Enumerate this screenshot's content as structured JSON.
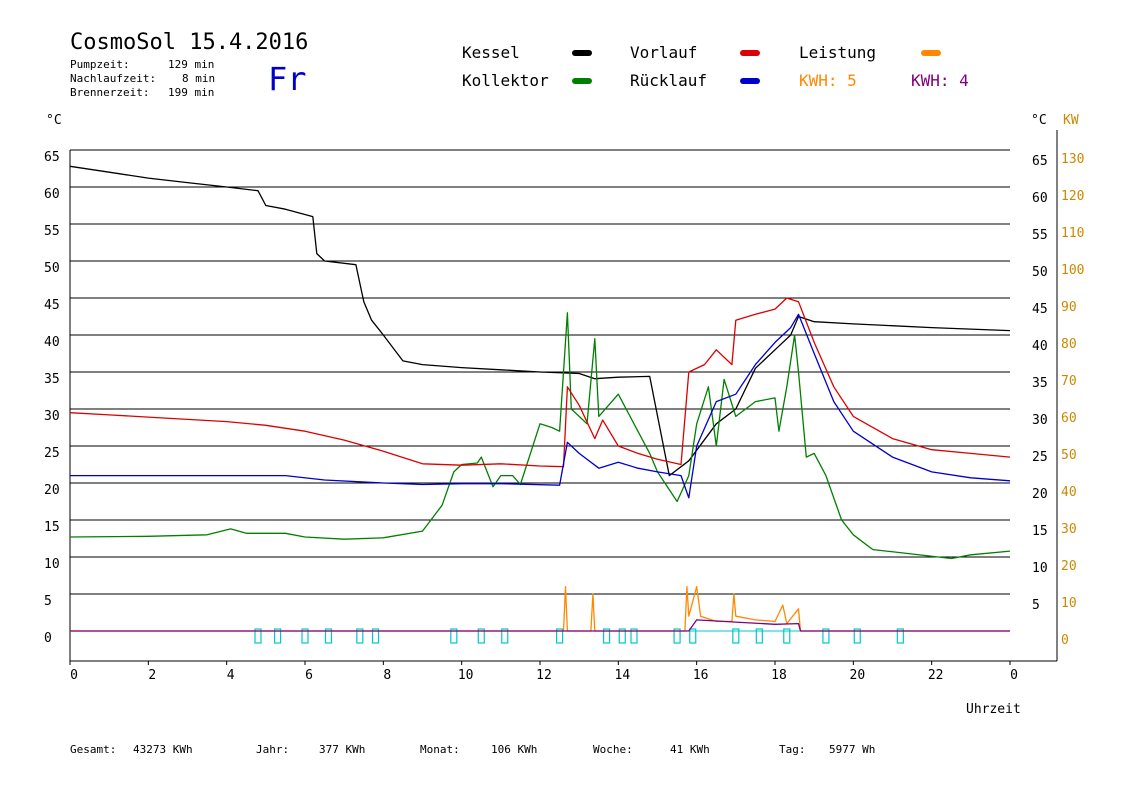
{
  "header": {
    "title": "CosmoSol 15.4.2016",
    "pump_label": "Pumpzeit:",
    "pump_value": "129 min",
    "nach_label": "Nachlaufzeit:",
    "nach_value": "8 min",
    "brenner_label": "Brennerzeit:",
    "brenner_value": "199 min",
    "weekday": "Fr"
  },
  "legend": {
    "kessel": "Kessel",
    "kollektor": "Kollektor",
    "vorlauf": "Vorlauf",
    "ruecklauf": "Rücklauf",
    "leistung": "Leistung",
    "kwh1": "KWH: 5",
    "kwh2": "KWH: 4"
  },
  "colors": {
    "kessel": "#000000",
    "kollektor": "#008000",
    "vorlauf": "#dd0000",
    "ruecklauf": "#0000cc",
    "leistung": "#ff8800",
    "kwh2": "#800080",
    "markers": "#00c8c8"
  },
  "axes": {
    "left_unit": "°C",
    "right_unit_c": "°C",
    "right_unit_kw": "KW",
    "xlabel": "Uhrzeit"
  },
  "footer": {
    "gesamt_label": "Gesamt:",
    "gesamt_value": "43273 KWh",
    "jahr_label": "Jahr:",
    "jahr_value": "377 KWh",
    "monat_label": "Monat:",
    "monat_value": "106 KWh",
    "woche_label": "Woche:",
    "woche_value": "41 KWh",
    "tag_label": "Tag:",
    "tag_value": "5977 Wh"
  },
  "chart_data": {
    "type": "line",
    "xlabel": "Uhrzeit",
    "ylabel": "°C",
    "xlim": [
      0,
      24
    ],
    "ylim": [
      0,
      65
    ],
    "y2lim": [
      0,
      130
    ],
    "x_tick_labels": [
      "0",
      "2",
      "4",
      "6",
      "8",
      "10",
      "12",
      "14",
      "16",
      "18",
      "20",
      "22",
      "0"
    ],
    "y_tick_labels": [
      "0",
      "5",
      "10",
      "15",
      "20",
      "25",
      "30",
      "35",
      "40",
      "45",
      "50",
      "55",
      "60",
      "65"
    ],
    "y2_kw_labels": [
      "0",
      "10",
      "20",
      "30",
      "40",
      "50",
      "60",
      "70",
      "80",
      "90",
      "100",
      "110",
      "120",
      "130"
    ],
    "y2_c_labels": [
      "5",
      "10",
      "15",
      "20",
      "25",
      "30",
      "35",
      "40",
      "45",
      "50",
      "55",
      "60",
      "65"
    ],
    "series": [
      {
        "name": "Kessel",
        "color": "#000000",
        "points": [
          [
            0,
            62.8
          ],
          [
            1,
            62
          ],
          [
            2,
            61.2
          ],
          [
            3,
            60.6
          ],
          [
            4,
            60
          ],
          [
            4.8,
            59.5
          ],
          [
            5,
            57.5
          ],
          [
            5.5,
            57
          ],
          [
            6.2,
            56
          ],
          [
            6.3,
            51
          ],
          [
            6.5,
            50
          ],
          [
            7.3,
            49.5
          ],
          [
            7.5,
            44.5
          ],
          [
            7.7,
            42
          ],
          [
            8,
            40
          ],
          [
            8.5,
            36.5
          ],
          [
            9,
            36
          ],
          [
            10,
            35.6
          ],
          [
            11,
            35.3
          ],
          [
            12,
            35
          ],
          [
            13,
            34.8
          ],
          [
            13.4,
            34.1
          ],
          [
            14,
            34.3
          ],
          [
            14.8,
            34.4
          ],
          [
            15.3,
            21
          ],
          [
            15.8,
            23
          ],
          [
            16.5,
            28
          ],
          [
            17,
            30
          ],
          [
            17.5,
            35.5
          ],
          [
            18,
            38
          ],
          [
            18.4,
            40
          ],
          [
            18.6,
            42.5
          ],
          [
            19,
            41.8
          ],
          [
            20,
            41.5
          ],
          [
            22,
            41
          ],
          [
            24,
            40.6
          ]
        ]
      },
      {
        "name": "Kollektor",
        "color": "#008000",
        "points": [
          [
            0,
            12.7
          ],
          [
            2,
            12.8
          ],
          [
            3.5,
            13
          ],
          [
            4.1,
            13.8
          ],
          [
            4.5,
            13.2
          ],
          [
            5.5,
            13.2
          ],
          [
            6,
            12.7
          ],
          [
            7,
            12.4
          ],
          [
            8,
            12.6
          ],
          [
            9,
            13.5
          ],
          [
            9.5,
            17
          ],
          [
            9.8,
            21.5
          ],
          [
            10,
            22.5
          ],
          [
            10.4,
            22.7
          ],
          [
            10.5,
            23.5
          ],
          [
            10.8,
            19.5
          ],
          [
            11,
            21
          ],
          [
            11.3,
            21
          ],
          [
            11.5,
            19.8
          ],
          [
            12,
            28
          ],
          [
            12.3,
            27.5
          ],
          [
            12.5,
            27
          ],
          [
            12.7,
            43
          ],
          [
            12.8,
            30
          ],
          [
            13.2,
            28
          ],
          [
            13.4,
            39.5
          ],
          [
            13.5,
            29
          ],
          [
            14,
            32
          ],
          [
            14.5,
            27
          ],
          [
            14.8,
            24
          ],
          [
            15,
            21.5
          ],
          [
            15.5,
            17.5
          ],
          [
            15.8,
            21
          ],
          [
            16,
            28
          ],
          [
            16.3,
            33
          ],
          [
            16.5,
            25
          ],
          [
            16.7,
            34
          ],
          [
            17,
            29
          ],
          [
            17.5,
            31
          ],
          [
            18,
            31.5
          ],
          [
            18.1,
            27
          ],
          [
            18.3,
            33
          ],
          [
            18.5,
            40
          ],
          [
            18.6,
            35
          ],
          [
            18.8,
            23.5
          ],
          [
            19,
            24
          ],
          [
            19.3,
            21
          ],
          [
            19.7,
            15
          ],
          [
            20,
            13
          ],
          [
            20.5,
            11
          ],
          [
            21.5,
            10.4
          ],
          [
            22.5,
            9.8
          ],
          [
            23,
            10.3
          ],
          [
            24,
            10.8
          ]
        ]
      },
      {
        "name": "Vorlauf",
        "color": "#dd0000",
        "points": [
          [
            0,
            29.5
          ],
          [
            1,
            29.2
          ],
          [
            2,
            28.9
          ],
          [
            3,
            28.6
          ],
          [
            4,
            28.3
          ],
          [
            5,
            27.8
          ],
          [
            6,
            27
          ],
          [
            7,
            25.8
          ],
          [
            8,
            24.3
          ],
          [
            9,
            22.6
          ],
          [
            10,
            22.4
          ],
          [
            11,
            22.6
          ],
          [
            12,
            22.3
          ],
          [
            12.6,
            22.2
          ],
          [
            12.7,
            33
          ],
          [
            13,
            30.5
          ],
          [
            13.4,
            26
          ],
          [
            13.6,
            28.5
          ],
          [
            14,
            25
          ],
          [
            14.5,
            24
          ],
          [
            15,
            23.2
          ],
          [
            15.6,
            22.5
          ],
          [
            15.8,
            35
          ],
          [
            16.2,
            36
          ],
          [
            16.5,
            38
          ],
          [
            16.9,
            36
          ],
          [
            17,
            42
          ],
          [
            17.5,
            42.8
          ],
          [
            18,
            43.5
          ],
          [
            18.3,
            45
          ],
          [
            18.6,
            44.5
          ],
          [
            19,
            39
          ],
          [
            19.5,
            33
          ],
          [
            20,
            29
          ],
          [
            21,
            26
          ],
          [
            22,
            24.5
          ],
          [
            23,
            24
          ],
          [
            24,
            23.5
          ]
        ]
      },
      {
        "name": "Rücklauf",
        "color": "#0000cc",
        "points": [
          [
            0,
            21
          ],
          [
            3,
            21
          ],
          [
            5.5,
            21
          ],
          [
            6.5,
            20.4
          ],
          [
            8,
            20
          ],
          [
            9,
            19.8
          ],
          [
            10,
            19.9
          ],
          [
            11,
            19.9
          ],
          [
            12.5,
            19.7
          ],
          [
            12.7,
            25.5
          ],
          [
            13,
            24
          ],
          [
            13.5,
            22
          ],
          [
            14,
            22.8
          ],
          [
            14.5,
            22
          ],
          [
            15,
            21.5
          ],
          [
            15.6,
            21
          ],
          [
            15.8,
            18
          ],
          [
            16,
            25
          ],
          [
            16.5,
            31
          ],
          [
            17,
            32
          ],
          [
            17.5,
            36
          ],
          [
            18,
            39
          ],
          [
            18.4,
            41
          ],
          [
            18.6,
            42.8
          ],
          [
            19,
            37.5
          ],
          [
            19.5,
            31
          ],
          [
            20,
            27
          ],
          [
            21,
            23.5
          ],
          [
            22,
            21.5
          ],
          [
            23,
            20.7
          ],
          [
            24,
            20.3
          ]
        ]
      },
      {
        "name": "Leistung",
        "color": "#ff8800",
        "points": [
          [
            0,
            0
          ],
          [
            12.6,
            0
          ],
          [
            12.65,
            6
          ],
          [
            12.7,
            0
          ],
          [
            13.3,
            0
          ],
          [
            13.35,
            5
          ],
          [
            13.4,
            0
          ],
          [
            15.7,
            0
          ],
          [
            15.75,
            6
          ],
          [
            15.8,
            2
          ],
          [
            16,
            6
          ],
          [
            16.1,
            2
          ],
          [
            16.5,
            1.3
          ],
          [
            16.9,
            1.3
          ],
          [
            16.95,
            5
          ],
          [
            17,
            2
          ],
          [
            17.5,
            1.5
          ],
          [
            18,
            1.3
          ],
          [
            18.2,
            3.5
          ],
          [
            18.3,
            1
          ],
          [
            18.6,
            3
          ],
          [
            18.65,
            0
          ],
          [
            24,
            0
          ]
        ]
      },
      {
        "name": "KWH",
        "color": "#800080",
        "points": [
          [
            0,
            0
          ],
          [
            15.8,
            0
          ],
          [
            16,
            1.5
          ],
          [
            17,
            1.2
          ],
          [
            18,
            0.9
          ],
          [
            18.6,
            1
          ],
          [
            18.65,
            0
          ],
          [
            24,
            0
          ]
        ]
      }
    ],
    "marker_hours": [
      4.8,
      5.3,
      6,
      6.6,
      7.4,
      7.8,
      9.8,
      10.5,
      11.1,
      12.5,
      13.7,
      14.1,
      14.4,
      15.5,
      15.9,
      17,
      17.6,
      18.3,
      19.3,
      20.1,
      21.2
    ]
  }
}
